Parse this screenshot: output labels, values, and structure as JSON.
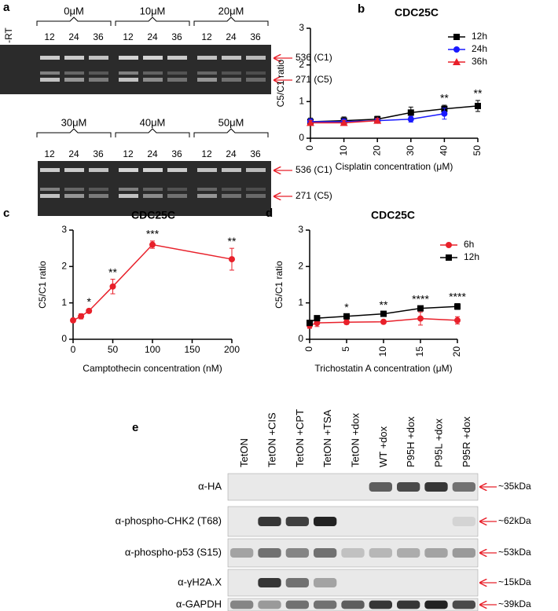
{
  "panel_a": {
    "label": "a",
    "rt_label": "-RT",
    "rows": [
      {
        "groups": [
          {
            "conc": "0μM",
            "times": [
              "12",
              "24",
              "36"
            ]
          },
          {
            "conc": "10μM",
            "times": [
              "12",
              "24",
              "36"
            ]
          },
          {
            "conc": "20μM",
            "times": [
              "12",
              "24",
              "36"
            ]
          }
        ],
        "bands": [
          "536 (C1)",
          "271 (C5)"
        ]
      },
      {
        "groups": [
          {
            "conc": "30μM",
            "times": [
              "12",
              "24",
              "36"
            ]
          },
          {
            "conc": "40μM",
            "times": [
              "12",
              "24",
              "36"
            ]
          },
          {
            "conc": "50μM",
            "times": [
              "12",
              "24",
              "36"
            ]
          }
        ],
        "bands": [
          "536 (C1)",
          "271 (C5)"
        ]
      }
    ]
  },
  "chart_data": [
    {
      "type": "line",
      "panel_label": "b",
      "title": "CDC25C",
      "x_label": "Cisplatin concentration (μM)",
      "y_label": "C5/C1 ratio",
      "x": [
        0,
        10,
        20,
        30,
        40,
        50
      ],
      "xlim": [
        0,
        50
      ],
      "xticks": [
        0,
        10,
        20,
        30,
        40,
        50
      ],
      "ylim": [
        0,
        3
      ],
      "yticks": [
        0,
        1,
        2,
        3
      ],
      "x_tick_rotation": -90,
      "legend": "upper right",
      "series": [
        {
          "name": "12h",
          "color": "#000000",
          "marker": "square",
          "values": [
            0.45,
            0.48,
            0.52,
            0.7,
            0.8,
            0.88
          ],
          "errors": [
            0.1,
            0.1,
            0.08,
            0.15,
            0.1,
            0.15
          ]
        },
        {
          "name": "24h",
          "color": "#1a1aff",
          "marker": "circle",
          "values": [
            0.45,
            0.45,
            0.48,
            0.52,
            0.67,
            null
          ],
          "errors": [
            0.08,
            0.08,
            0.06,
            0.08,
            0.15,
            null
          ]
        },
        {
          "name": "36h",
          "color": "#e8202a",
          "marker": "triangle",
          "values": [
            0.42,
            0.42,
            0.48,
            null,
            null,
            null
          ],
          "errors": [
            0.06,
            0.06,
            0.06,
            null,
            null,
            null
          ]
        }
      ],
      "annotations": [
        {
          "x": 40,
          "text": "**"
        },
        {
          "x": 50,
          "text": "**"
        }
      ]
    },
    {
      "type": "line",
      "panel_label": "c",
      "title": "CDC25C",
      "x_label": "Camptothecin concentration (nM)",
      "y_label": "C5/C1 ratio",
      "x": [
        0,
        10,
        20,
        50,
        100,
        200
      ],
      "xlim": [
        0,
        200
      ],
      "xticks": [
        0,
        50,
        100,
        150,
        200
      ],
      "ylim": [
        0,
        3
      ],
      "yticks": [
        0,
        1,
        2,
        3
      ],
      "x_tick_rotation": 0,
      "series": [
        {
          "color": "#e8202a",
          "marker": "circle",
          "values": [
            0.52,
            0.63,
            0.78,
            1.45,
            2.6,
            2.2
          ],
          "errors": [
            0.05,
            0.07,
            0.05,
            0.2,
            0.1,
            0.3
          ]
        }
      ],
      "annotations": [
        {
          "x": 20,
          "text": "*"
        },
        {
          "x": 50,
          "text": "**"
        },
        {
          "x": 100,
          "text": "***"
        },
        {
          "x": 200,
          "text": "**"
        }
      ]
    },
    {
      "type": "line",
      "panel_label": "d",
      "title": "CDC25C",
      "x_label": "Trichostatin A concentration (μM)",
      "y_label": "C5/C1 ratio",
      "x": [
        0,
        1,
        5,
        10,
        15,
        20
      ],
      "xlim": [
        0,
        20
      ],
      "xticks": [
        0,
        5,
        10,
        15,
        20
      ],
      "ylim": [
        0,
        3
      ],
      "yticks": [
        0,
        1,
        2,
        3
      ],
      "x_tick_rotation": -90,
      "legend": "upper right",
      "series": [
        {
          "name": "6h",
          "color": "#e8202a",
          "marker": "circle",
          "values": [
            0.38,
            0.45,
            0.47,
            0.48,
            0.57,
            0.52
          ],
          "errors": [
            0.08,
            0.1,
            0.06,
            0.05,
            0.18,
            0.1
          ]
        },
        {
          "name": "12h",
          "color": "#000000",
          "marker": "square",
          "values": [
            0.45,
            0.58,
            0.63,
            0.7,
            0.85,
            0.9
          ],
          "errors": [
            0.06,
            0.06,
            0.05,
            0.05,
            0.06,
            0.08
          ]
        }
      ],
      "annotations": [
        {
          "x": 5,
          "text": "*"
        },
        {
          "x": 10,
          "text": "**"
        },
        {
          "x": 15,
          "text": "****"
        },
        {
          "x": 20,
          "text": "****"
        }
      ]
    }
  ],
  "panel_e": {
    "label": "e",
    "columns": [
      "TetON",
      "TetON +CIS",
      "TetON +CPT",
      "TetON +TSA",
      "TetON +dox",
      "WT +dox",
      "P95H +dox",
      "P95L +dox",
      "P95R +dox"
    ],
    "rows": [
      {
        "antibody": "α-HA",
        "size": "~35kDa"
      },
      {
        "antibody": "α-phospho-CHK2 (T68)",
        "size": "~62kDa"
      },
      {
        "antibody": "α-phospho-p53 (S15)",
        "size": "~53kDa"
      },
      {
        "antibody": "α-γH2A.X",
        "size": "~15kDa"
      },
      {
        "antibody": "α-GAPDH",
        "size": "~39kDa"
      }
    ]
  }
}
